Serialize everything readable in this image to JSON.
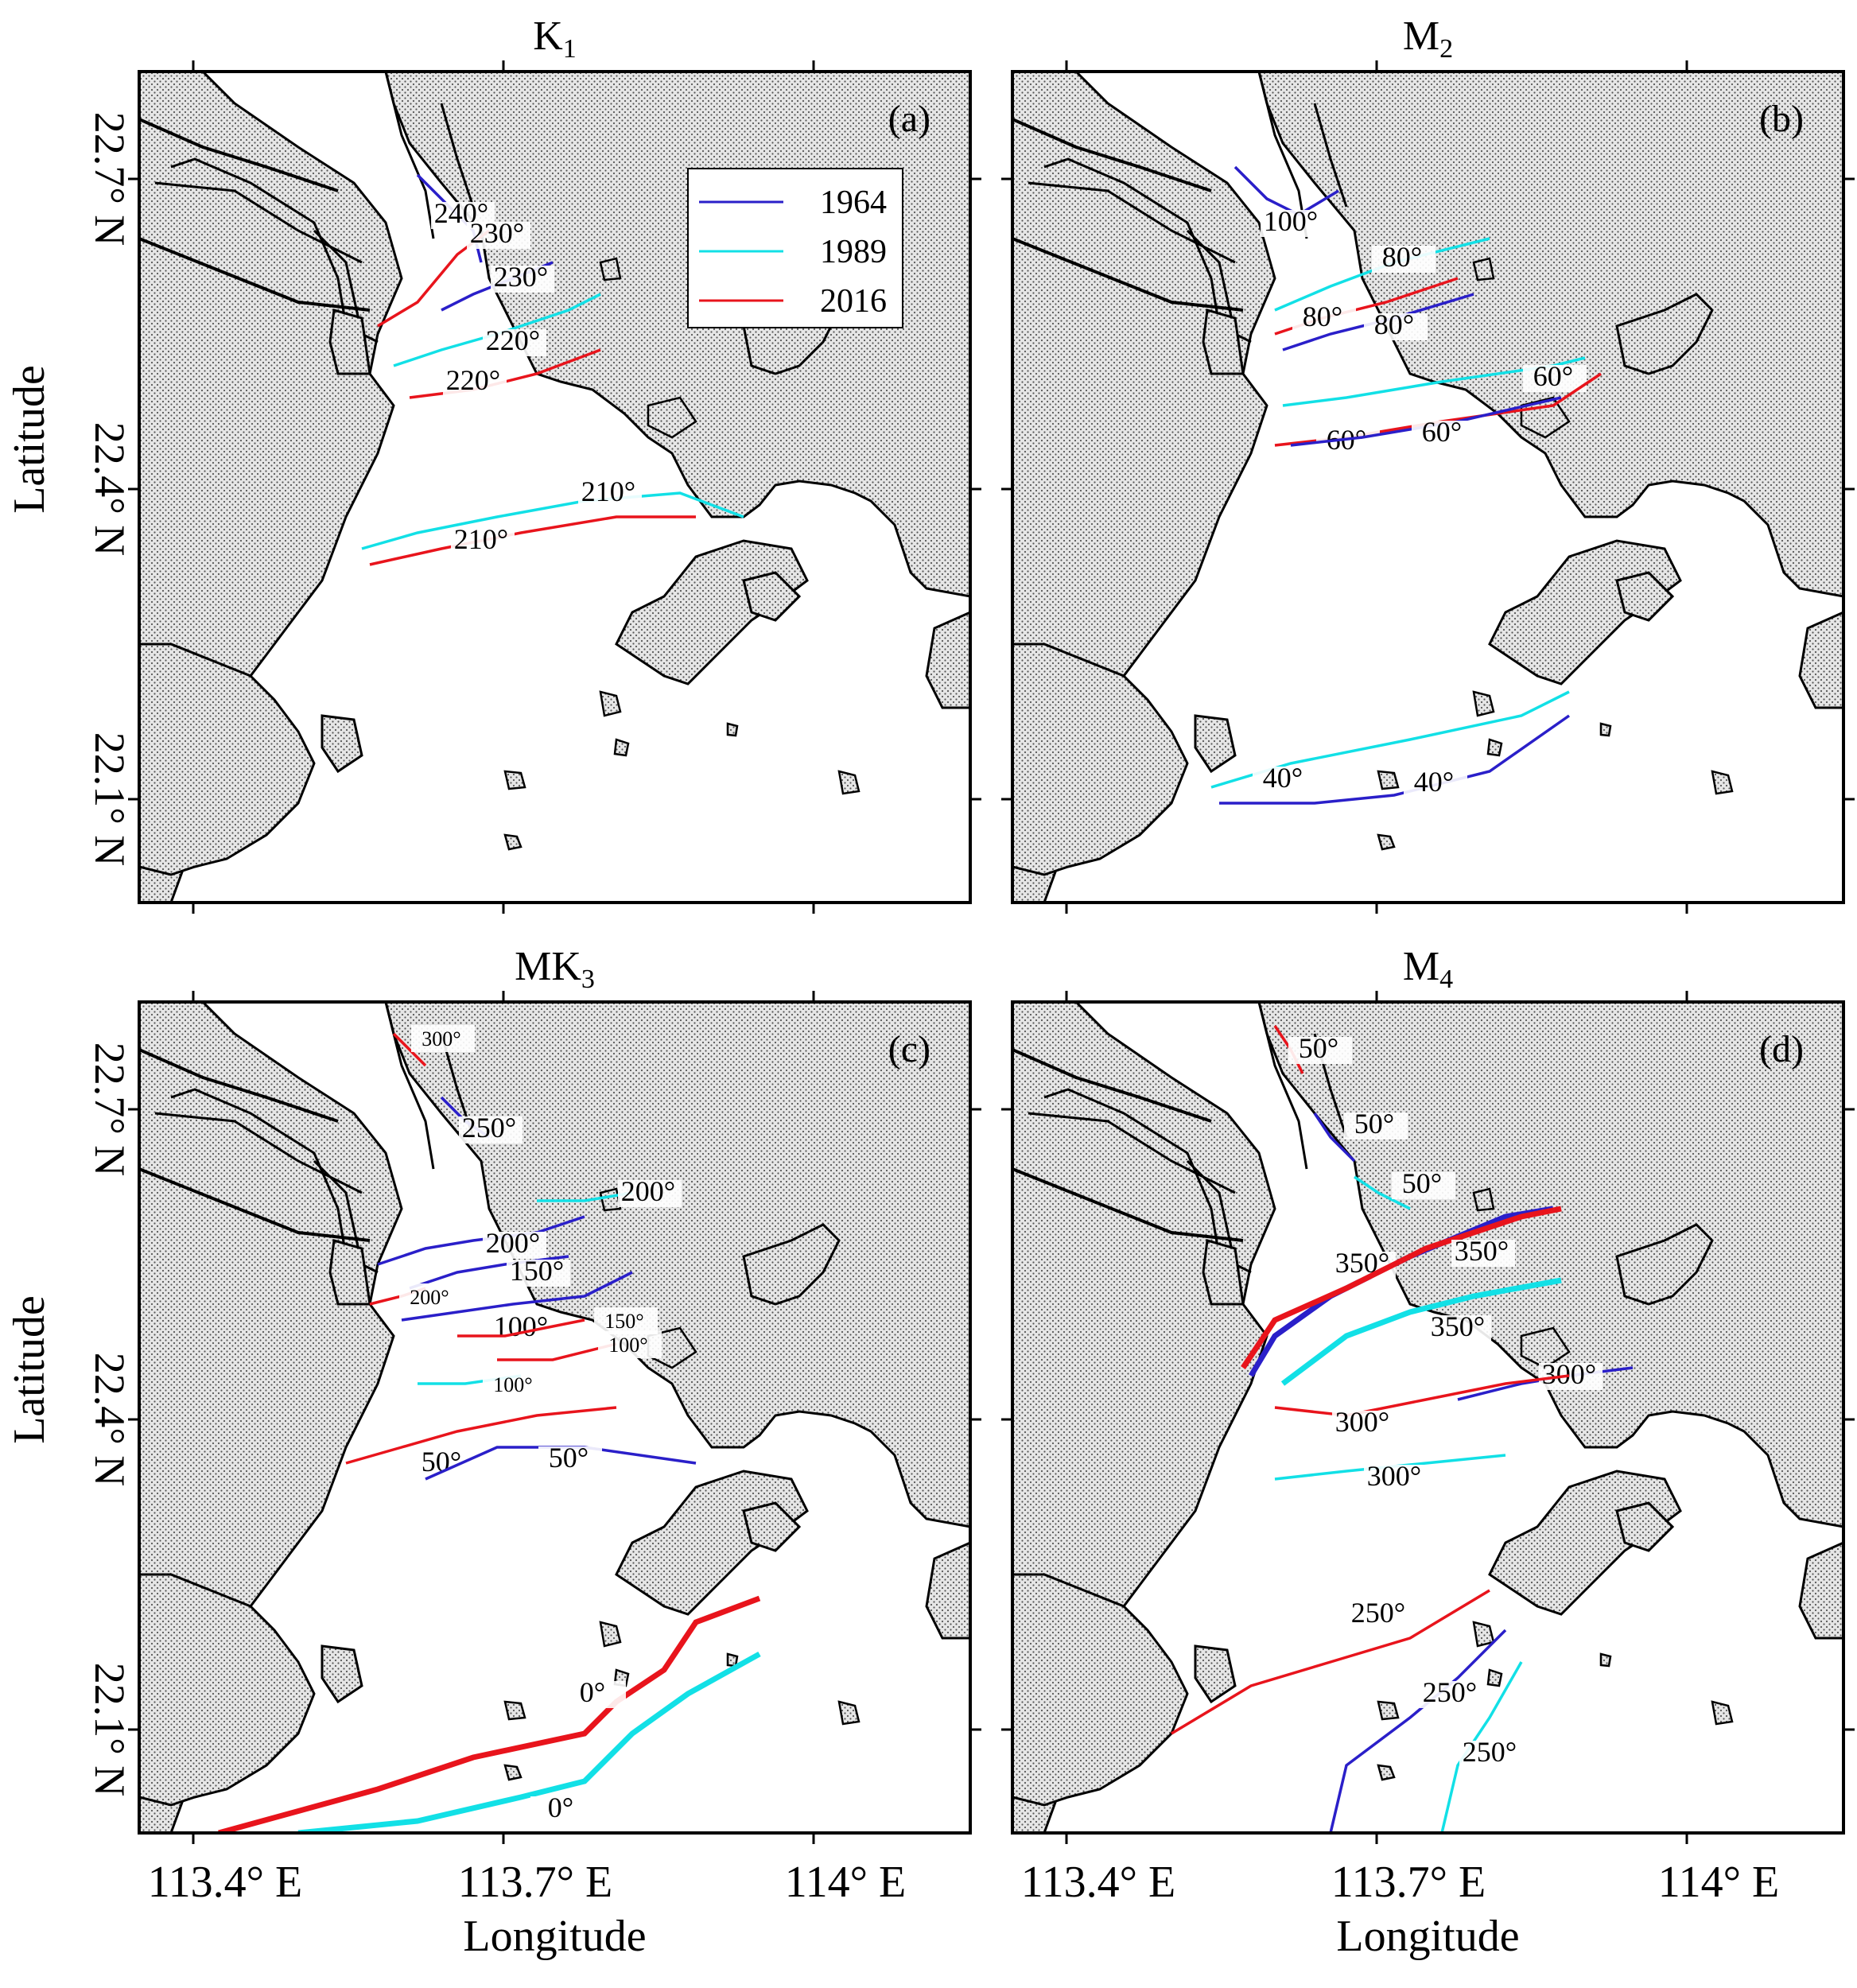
{
  "figure": {
    "panels": [
      {
        "id": "a",
        "title": "K",
        "title_sub": "1",
        "label": "(a)",
        "contours": [
          {
            "year": "1964",
            "label": "240°"
          },
          {
            "year": "2016",
            "label": "230°"
          },
          {
            "year": "1964",
            "label": "230°"
          },
          {
            "year": "1989",
            "label": "220°"
          },
          {
            "year": "2016",
            "label": "220°"
          },
          {
            "year": "1989",
            "label": "210°"
          },
          {
            "year": "2016",
            "label": "210°"
          }
        ]
      },
      {
        "id": "b",
        "title": "M",
        "title_sub": "2",
        "label": "(b)",
        "contours": [
          {
            "year": "1964",
            "label": "100°"
          },
          {
            "year": "1989",
            "label": "80°"
          },
          {
            "year": "2016",
            "label": "80°"
          },
          {
            "year": "1964",
            "label": "80°"
          },
          {
            "year": "1989",
            "label": "60°"
          },
          {
            "year": "2016",
            "label": "60°"
          },
          {
            "year": "1964",
            "label": "60°"
          },
          {
            "year": "1989",
            "label": "40°"
          },
          {
            "year": "1964",
            "label": "40°"
          }
        ]
      },
      {
        "id": "c",
        "title": "MK",
        "title_sub": "3",
        "label": "(c)",
        "contours": [
          {
            "year": "2016",
            "label": "300°"
          },
          {
            "year": "1964",
            "label": "250°"
          },
          {
            "year": "1964",
            "label": "200°"
          },
          {
            "year": "1989",
            "label": "200°"
          },
          {
            "year": "1964",
            "label": "150°"
          },
          {
            "year": "2016",
            "label": "200°"
          },
          {
            "year": "1964",
            "label": "100°"
          },
          {
            "year": "2016",
            "label": "150°"
          },
          {
            "year": "2016",
            "label": "100°"
          },
          {
            "year": "1989",
            "label": "100°"
          },
          {
            "year": "2016",
            "label": "50°"
          },
          {
            "year": "1964",
            "label": "50°"
          },
          {
            "year": "2016",
            "label": "0°"
          },
          {
            "year": "1989",
            "label": "0°"
          }
        ]
      },
      {
        "id": "d",
        "title": "M",
        "title_sub": "4",
        "label": "(d)",
        "contours": [
          {
            "year": "2016",
            "label": "50°"
          },
          {
            "year": "1964",
            "label": "50°"
          },
          {
            "year": "1989",
            "label": "50°"
          },
          {
            "year": "1964",
            "label": "350°"
          },
          {
            "year": "2016",
            "label": "350°"
          },
          {
            "year": "1989",
            "label": "350°"
          },
          {
            "year": "1964",
            "label": "300°"
          },
          {
            "year": "2016",
            "label": "300°"
          },
          {
            "year": "1989",
            "label": "300°"
          },
          {
            "year": "2016",
            "label": "250°"
          },
          {
            "year": "1964",
            "label": "250°"
          },
          {
            "year": "1989",
            "label": "250°"
          }
        ]
      }
    ],
    "legend": {
      "entries": [
        {
          "label": "1964",
          "color": "#2a1fc9"
        },
        {
          "label": "1989",
          "color": "#12e0e6"
        },
        {
          "label": "2016",
          "color": "#e8141c"
        }
      ]
    },
    "x_axis": {
      "label": "Longitude",
      "ticks": [
        "113.4° E",
        "113.7° E",
        "114° E"
      ]
    },
    "y_axis": {
      "label": "Latitude",
      "ticks": [
        "22.1° N",
        "22.4° N",
        "22.7° N"
      ]
    },
    "colors": {
      "y1964": "#2a1fc9",
      "y1989": "#12e0e6",
      "y2016": "#e8141c",
      "land_fill": "#dcdcdc",
      "coast": "#000000"
    }
  }
}
